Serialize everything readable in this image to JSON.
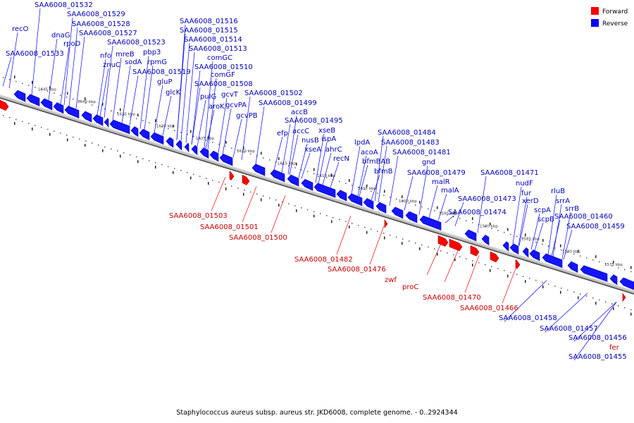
{
  "caption": "Staphylococcus aureus subsp. aureus str. JKD6008, complete genome. - 0..2924344",
  "legend": [
    {
      "label": "Forward",
      "color": "#ff0000"
    },
    {
      "label": "Reverse",
      "color": "#0000ff"
    }
  ],
  "colors": {
    "forward": "#ff0000",
    "reverse": "#0000ff",
    "forward_label": "#c80000",
    "reverse_label": "#0000b4",
    "backbone": "#808080"
  },
  "scale_ticks": [
    "1645 kbp",
    "1640 kbp",
    "1635 kbp",
    "1630 kbp",
    "1625 kbp",
    "1620 kbp",
    "1615 kbp",
    "1610 kbp",
    "1605 kbp",
    "1600 kbp",
    "1595 kbp",
    "1590 kbp",
    "1585 kbp",
    "1580 kbp",
    "1575 kbp"
  ],
  "reverse_genes": [
    "SAA6008_01532",
    "recO",
    "dnaG",
    "SAA6008_01529",
    "SAA6008_01528",
    "SAA6008_01527",
    "rpoD",
    "SAA6008_01533",
    "nfo",
    "znuC",
    "mreB",
    "sodA",
    "SAA6008_01523",
    "pbp3",
    "rpmG",
    "SAA6008_01519",
    "gluP",
    "glcK",
    "SAA6008_01516",
    "SAA6008_01515",
    "SAA6008_01514",
    "SAA6008_01513",
    "comGC",
    "SAA6008_01510",
    "comGF",
    "SAA6008_01508",
    "pulG",
    "gcvT",
    "aroK",
    "gcvPA",
    "gcvPB",
    "SAA6008_01502",
    "SAA6008_01499",
    "accB",
    "efp",
    "SAA6008_01495",
    "accC",
    "xseB",
    "nusB",
    "ispA",
    "xseA",
    "ahrC",
    "recN",
    "lpdA",
    "SAA6008_01484",
    "acoA",
    "SAA6008_01483",
    "bfmBAB",
    "SAA6008_01481",
    "bfmB",
    "gnd",
    "SAA6008_01479",
    "malR",
    "malA",
    "SAA6008_01473",
    "SAA6008_01474",
    "SAA6008_01471",
    "nudF",
    "fur",
    "xerD",
    "rluB",
    "srrA",
    "scpA",
    "srrB",
    "scpB",
    "SAA6008_01460",
    "SAA6008_01459",
    "SAA6008_01458",
    "SAA6008_01457",
    "SAA6008_01456",
    "SAA6008_01455"
  ],
  "forward_genes": [
    "SAA6008_01503",
    "SAA6008_01501",
    "SAA6008_01500",
    "SAA6008_01482",
    "SAA6008_01476",
    "zwf",
    "proC",
    "SAA6008_01470",
    "SAA6008_01466",
    "fer"
  ]
}
